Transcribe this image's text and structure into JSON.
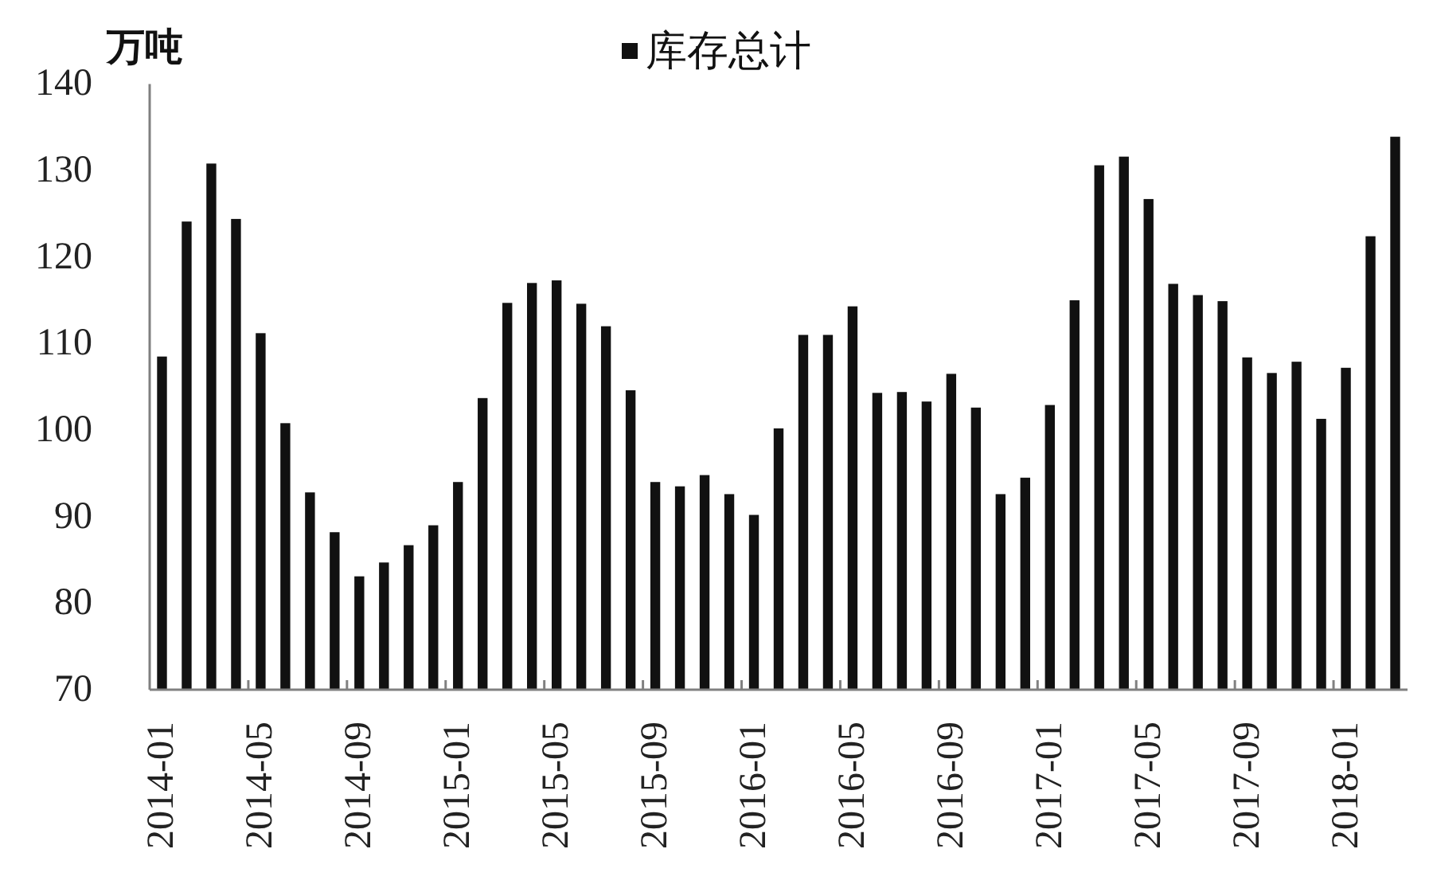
{
  "chart_data": {
    "type": "bar",
    "ylabel": "万吨",
    "categories": [
      "2014-01",
      null,
      null,
      null,
      "2014-05",
      null,
      null,
      null,
      "2014-09",
      null,
      null,
      null,
      "2015-01",
      null,
      null,
      null,
      "2015-05",
      null,
      null,
      null,
      "2015-09",
      null,
      null,
      null,
      "2016-01",
      null,
      null,
      null,
      "2016-05",
      null,
      null,
      null,
      "2016-09",
      null,
      null,
      null,
      "2017-01",
      null,
      null,
      null,
      "2017-05",
      null,
      null,
      null,
      "2017-09",
      null,
      null,
      null,
      "2018-01",
      null,
      null
    ],
    "series": [
      {
        "name": "库存总计",
        "color": "#111111",
        "values": [
          108.5,
          124.1,
          130.8,
          124.4,
          111.2,
          100.8,
          92.8,
          88.2,
          83.1,
          84.7,
          86.7,
          89.0,
          94.0,
          103.7,
          114.7,
          117.0,
          117.3,
          114.6,
          112.0,
          104.6,
          94.0,
          93.5,
          94.8,
          92.6,
          90.2,
          100.2,
          111.0,
          111.0,
          114.3,
          104.3,
          104.4,
          103.3,
          106.5,
          102.6,
          92.6,
          94.5,
          102.9,
          115.0,
          130.6,
          131.6,
          126.7,
          116.9,
          115.6,
          114.9,
          108.4,
          106.6,
          107.9,
          101.3,
          107.2,
          122.4,
          133.9
        ]
      }
    ],
    "ylim": [
      70,
      140
    ],
    "yticks": [
      70,
      80,
      90,
      100,
      110,
      120,
      130,
      140
    ],
    "legend": "top"
  }
}
